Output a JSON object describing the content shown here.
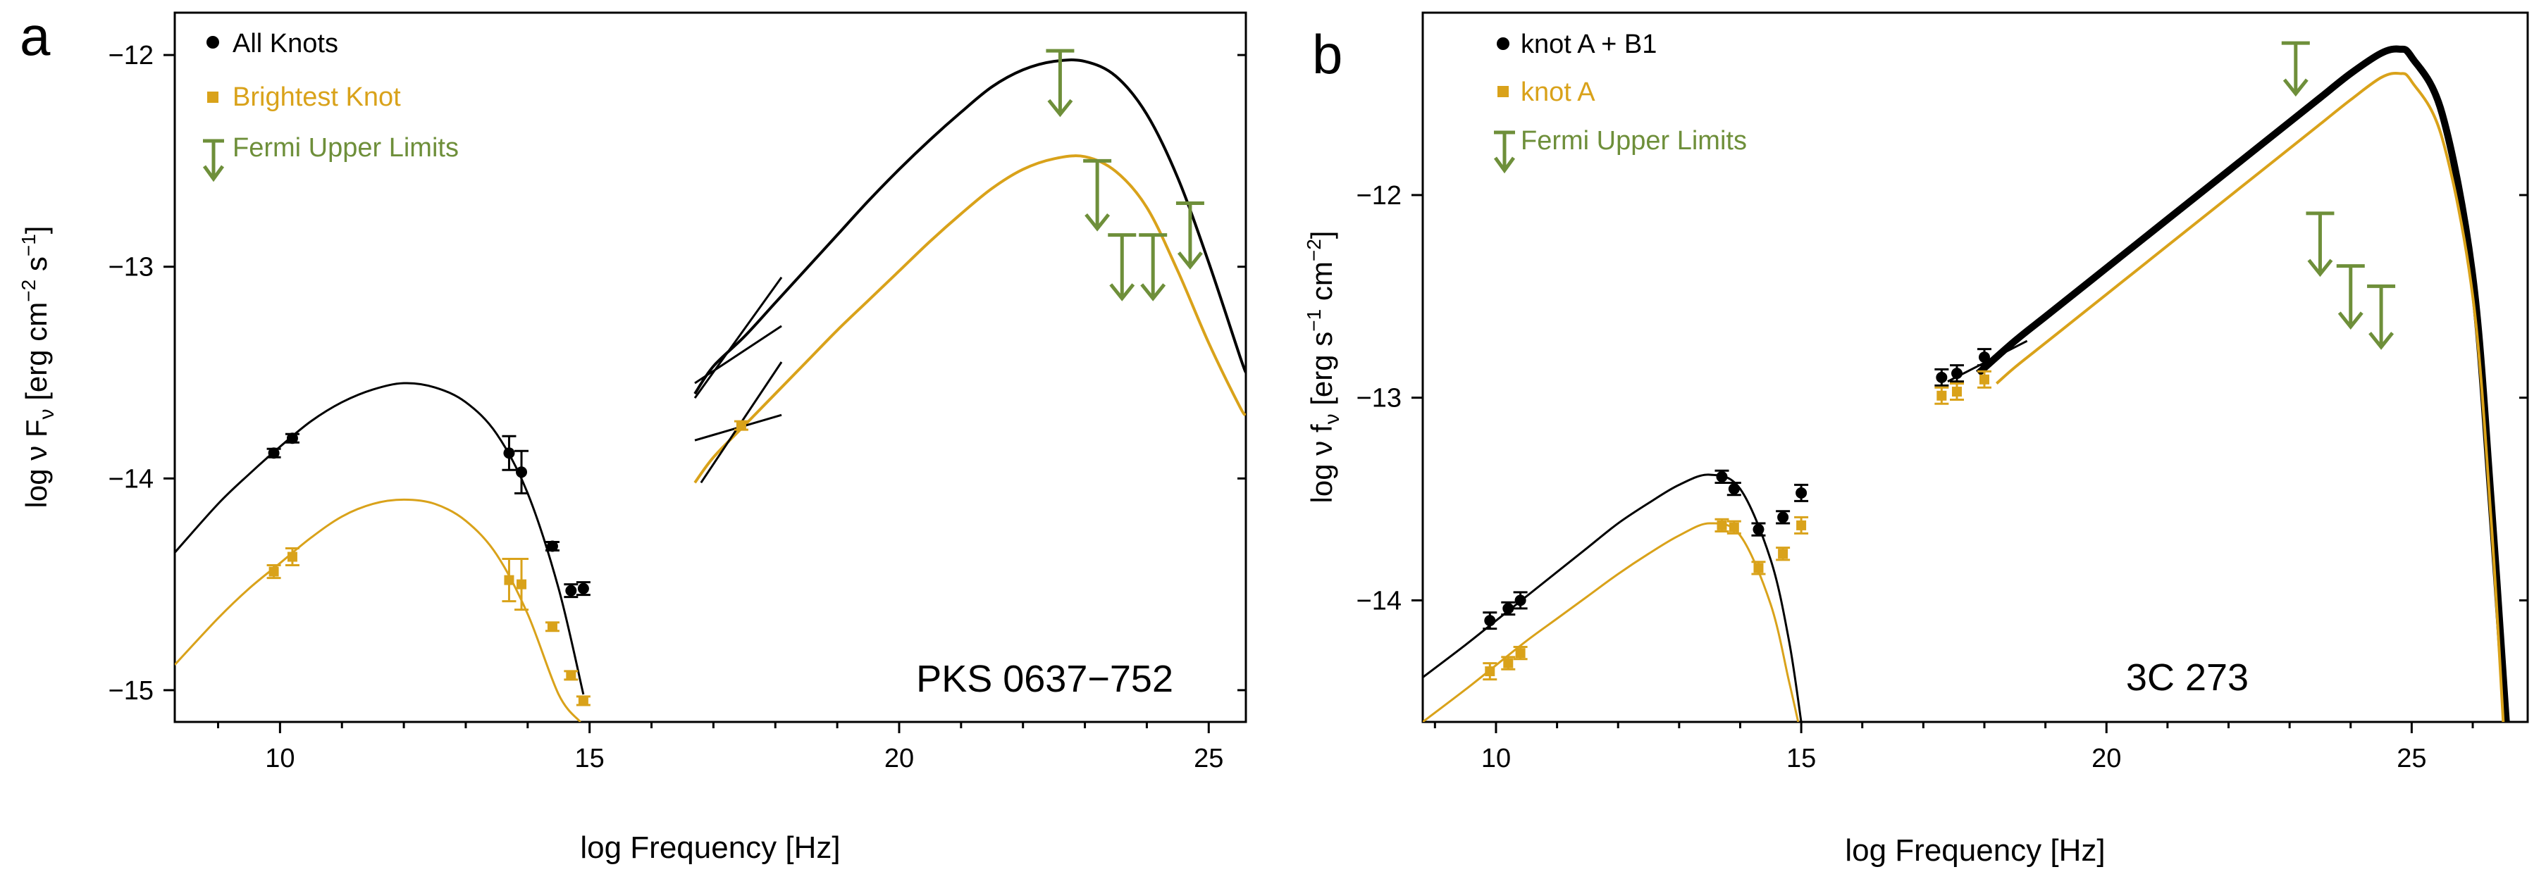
{
  "figure": {
    "panels": [
      "a",
      "b"
    ]
  },
  "colors": {
    "black": "#000000",
    "gold": "#d9a21a",
    "green": "#6e8f3a"
  },
  "chart_data": [
    {
      "panel_label": "a",
      "type": "line",
      "source_name": "PKS 0637−752",
      "xlabel": "log Frequency [Hz]",
      "ylabel": "log  ν Fν  [erg  cm⁻²  s⁻¹]",
      "xlim": [
        8.3,
        25.6
      ],
      "ylim": [
        -15.15,
        -11.8
      ],
      "xticks": [
        10,
        15,
        20,
        25
      ],
      "xtick_labels": [
        "10",
        "15",
        "20",
        "25"
      ],
      "yticks": [
        -12,
        -13,
        -14,
        -15
      ],
      "ytick_labels": [
        "−12",
        "−13",
        "−14",
        "−15"
      ],
      "legend": {
        "position": "top-left",
        "entries": [
          {
            "label": "All Knots",
            "color": "#000000",
            "marker": "circle"
          },
          {
            "label": "Brightest Knot",
            "color": "#d9a21a",
            "marker": "square"
          },
          {
            "label": "Fermi Upper Limits",
            "color": "#6e8f3a",
            "marker": "arrow"
          }
        ]
      },
      "curves": [
        {
          "name": "All Knots synchrotron",
          "color": "#000000",
          "width": 3,
          "x": [
            8.3,
            9,
            9.5,
            10,
            10.5,
            11,
            11.5,
            12,
            12.5,
            13,
            13.5,
            14,
            14.5,
            14.9
          ],
          "y": [
            -14.35,
            -14.12,
            -13.98,
            -13.85,
            -13.73,
            -13.64,
            -13.58,
            -13.55,
            -13.57,
            -13.64,
            -13.79,
            -14.07,
            -14.52,
            -15.02
          ]
        },
        {
          "name": "Brightest Knot synchrotron",
          "color": "#d9a21a",
          "width": 3,
          "x": [
            8.3,
            9,
            9.5,
            10,
            10.5,
            11,
            11.5,
            12,
            12.5,
            13,
            13.5,
            14,
            14.5,
            14.85
          ],
          "y": [
            -14.88,
            -14.66,
            -14.52,
            -14.4,
            -14.28,
            -14.18,
            -14.12,
            -14.1,
            -14.12,
            -14.2,
            -14.36,
            -14.64,
            -15.02,
            -15.15
          ]
        },
        {
          "name": "All Knots IC/CMB",
          "color": "#000000",
          "width": 4,
          "x": [
            16.7,
            17,
            17.5,
            18,
            18.5,
            19,
            19.5,
            20,
            20.5,
            21,
            21.5,
            22,
            22.5,
            23,
            23.5,
            24,
            24.5,
            25,
            25.5,
            25.6
          ],
          "y": [
            -13.6,
            -13.47,
            -13.33,
            -13.17,
            -13.01,
            -12.85,
            -12.69,
            -12.54,
            -12.4,
            -12.27,
            -12.15,
            -12.07,
            -12.03,
            -12.03,
            -12.1,
            -12.28,
            -12.58,
            -12.98,
            -13.42,
            -13.5
          ]
        },
        {
          "name": "Brightest Knot IC/CMB",
          "color": "#d9a21a",
          "width": 4,
          "x": [
            16.7,
            17,
            17.5,
            18,
            18.5,
            19,
            19.5,
            20,
            20.5,
            21,
            21.5,
            22,
            22.5,
            23,
            23.5,
            24,
            24.5,
            25,
            25.5,
            25.6
          ],
          "y": [
            -14.02,
            -13.9,
            -13.75,
            -13.6,
            -13.45,
            -13.3,
            -13.16,
            -13.02,
            -12.88,
            -12.75,
            -12.63,
            -12.54,
            -12.49,
            -12.48,
            -12.55,
            -12.72,
            -13.02,
            -13.36,
            -13.66,
            -13.7
          ]
        }
      ],
      "segments": [
        {
          "color": "#000000",
          "points": [
            [
              16.7,
              -13.62
            ],
            [
              18.1,
              -13.05
            ]
          ]
        },
        {
          "color": "#000000",
          "points": [
            [
              16.7,
              -13.55
            ],
            [
              18.1,
              -13.28
            ]
          ]
        },
        {
          "color": "#000000",
          "points": [
            [
              16.8,
              -14.02
            ],
            [
              18.1,
              -13.45
            ]
          ]
        },
        {
          "color": "#000000",
          "points": [
            [
              16.7,
              -13.82
            ],
            [
              18.1,
              -13.7
            ]
          ]
        }
      ],
      "series": [
        {
          "name": "All Knots",
          "color": "#000000",
          "marker": "circle",
          "x": [
            9.9,
            10.2,
            13.7,
            13.9,
            14.4,
            14.7,
            14.9
          ],
          "y": [
            -13.88,
            -13.81,
            -13.88,
            -13.97,
            -14.32,
            -14.53,
            -14.52
          ],
          "yerr": [
            0.02,
            0.02,
            0.08,
            0.1,
            0.02,
            0.03,
            0.03
          ]
        },
        {
          "name": "Brightest Knot",
          "color": "#d9a21a",
          "marker": "square",
          "x": [
            9.9,
            10.2,
            13.7,
            13.9,
            14.4,
            14.7,
            14.9,
            17.45
          ],
          "y": [
            -14.44,
            -14.37,
            -14.48,
            -14.5,
            -14.7,
            -14.93,
            -15.05,
            -13.75
          ],
          "yerr": [
            0.03,
            0.04,
            0.1,
            0.12,
            0.02,
            0.02,
            0.02,
            0.02
          ]
        },
        {
          "name": "Fermi Upper Limits",
          "color": "#6e8f3a",
          "marker": "arrow",
          "x": [
            22.6,
            23.2,
            23.6,
            24.1,
            24.7
          ],
          "y": [
            -11.98,
            -12.5,
            -12.85,
            -12.85,
            -12.7
          ],
          "arrow_len": [
            0.3,
            0.32,
            0.3,
            0.3,
            0.3
          ]
        }
      ]
    },
    {
      "panel_label": "b",
      "type": "line",
      "source_name": "3C 273",
      "xlabel": "log Frequency [Hz]",
      "ylabel": "log  ν fν  [erg  s⁻¹ cm⁻²]",
      "xlim": [
        8.8,
        26.9
      ],
      "ylim": [
        -14.6,
        -11.1
      ],
      "xticks": [
        10,
        15,
        20,
        25
      ],
      "xtick_labels": [
        "10",
        "15",
        "20",
        "25"
      ],
      "yticks": [
        -12,
        -13,
        -14
      ],
      "ytick_labels": [
        "−12",
        "−13",
        "−14"
      ],
      "legend": {
        "position": "top-left",
        "entries": [
          {
            "label": "knot A + B1",
            "color": "#000000",
            "marker": "circle"
          },
          {
            "label": "knot A",
            "color": "#d9a21a",
            "marker": "square"
          },
          {
            "label": "Fermi Upper Limits",
            "color": "#6e8f3a",
            "marker": "arrow"
          }
        ]
      },
      "curves": [
        {
          "name": "knot A + B1 synchrotron",
          "color": "#000000",
          "width": 3,
          "x": [
            8.8,
            9.5,
            10,
            10.5,
            11,
            11.5,
            12,
            12.5,
            13,
            13.5,
            14,
            14.5,
            14.8,
            15
          ],
          "y": [
            -14.38,
            -14.22,
            -14.1,
            -13.98,
            -13.86,
            -13.74,
            -13.62,
            -13.52,
            -13.43,
            -13.38,
            -13.45,
            -13.8,
            -14.2,
            -14.6
          ]
        },
        {
          "name": "knot A synchrotron",
          "color": "#d9a21a",
          "width": 3,
          "x": [
            8.8,
            9.5,
            10,
            10.5,
            11,
            11.5,
            12,
            12.5,
            13,
            13.5,
            14,
            14.5,
            14.8,
            14.95
          ],
          "y": [
            -14.6,
            -14.44,
            -14.32,
            -14.2,
            -14.09,
            -13.98,
            -13.87,
            -13.77,
            -13.68,
            -13.62,
            -13.68,
            -14.02,
            -14.4,
            -14.6
          ]
        },
        {
          "name": "knot A + B1 IC/CMB",
          "color": "#000000",
          "width": 10,
          "x": [
            17.9,
            18.5,
            19,
            19.5,
            20,
            20.5,
            21,
            21.5,
            22,
            22.5,
            23,
            23.5,
            24,
            24.5,
            24.8,
            25,
            25.5,
            26,
            26.3,
            26.55
          ],
          "y": [
            -12.88,
            -12.72,
            -12.6,
            -12.48,
            -12.36,
            -12.24,
            -12.12,
            -12.0,
            -11.88,
            -11.76,
            -11.64,
            -11.52,
            -11.4,
            -11.3,
            -11.28,
            -11.32,
            -11.6,
            -12.4,
            -13.5,
            -14.6
          ]
        },
        {
          "name": "knot A IC/CMB",
          "color": "#d9a21a",
          "width": 4,
          "x": [
            18.2,
            18.5,
            19,
            19.5,
            20,
            20.5,
            21,
            21.5,
            22,
            22.5,
            23,
            23.5,
            24,
            24.5,
            24.8,
            25,
            25.5,
            26,
            26.3,
            26.5
          ],
          "y": [
            -12.93,
            -12.85,
            -12.73,
            -12.61,
            -12.49,
            -12.37,
            -12.25,
            -12.13,
            -12.01,
            -11.89,
            -11.77,
            -11.65,
            -11.53,
            -11.42,
            -11.4,
            -11.44,
            -11.72,
            -12.5,
            -13.6,
            -14.6
          ]
        }
      ],
      "segments": [
        {
          "color": "#000000",
          "points": [
            [
              17.4,
              -12.92
            ],
            [
              18.7,
              -12.72
            ]
          ]
        }
      ],
      "series": [
        {
          "name": "knot A + B1",
          "color": "#000000",
          "marker": "circle",
          "x": [
            9.9,
            10.2,
            10.4,
            13.7,
            13.9,
            14.3,
            14.7,
            15.0,
            17.3,
            17.55,
            18.0
          ],
          "y": [
            -14.1,
            -14.04,
            -14.0,
            -13.39,
            -13.45,
            -13.65,
            -13.59,
            -13.47,
            -12.9,
            -12.88,
            -12.8
          ],
          "yerr": [
            0.04,
            0.03,
            0.04,
            0.03,
            0.03,
            0.03,
            0.03,
            0.04,
            0.04,
            0.04,
            0.04
          ]
        },
        {
          "name": "knot A",
          "color": "#d9a21a",
          "marker": "square",
          "x": [
            9.9,
            10.2,
            10.4,
            13.7,
            13.9,
            14.3,
            14.7,
            15.0,
            17.3,
            17.55,
            18.0
          ],
          "y": [
            -14.35,
            -14.31,
            -14.26,
            -13.63,
            -13.64,
            -13.84,
            -13.77,
            -13.63,
            -12.99,
            -12.97,
            -12.91
          ],
          "yerr": [
            0.04,
            0.03,
            0.03,
            0.03,
            0.03,
            0.03,
            0.03,
            0.04,
            0.04,
            0.04,
            0.04
          ]
        },
        {
          "name": "Fermi Upper Limits",
          "color": "#6e8f3a",
          "marker": "arrow",
          "x": [
            23.1,
            23.5,
            24.0,
            24.5
          ],
          "y": [
            -11.25,
            -12.09,
            -12.35,
            -12.45
          ],
          "arrow_len": [
            0.25,
            0.3,
            0.3,
            0.3
          ]
        }
      ]
    }
  ]
}
